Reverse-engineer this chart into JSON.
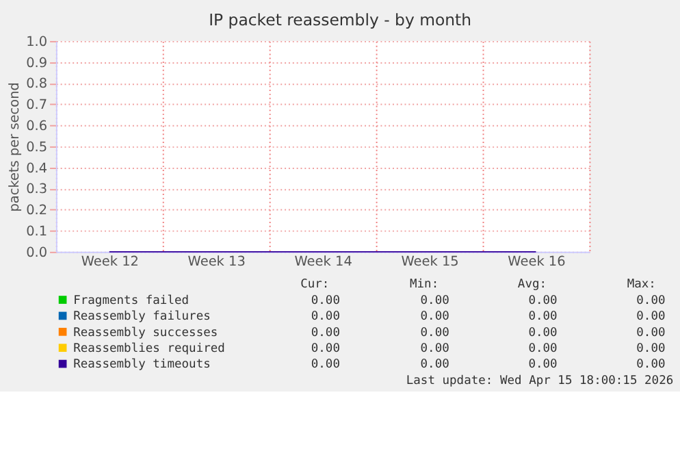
{
  "chart_data": {
    "type": "line",
    "title": "IP packet reassembly - by month",
    "ylabel": "packets per second",
    "categories": [
      "Week 12",
      "Week 13",
      "Week 14",
      "Week 15",
      "Week 16"
    ],
    "series": [
      {
        "name": "Fragments failed",
        "color": "#00cc00",
        "values": [
          null,
          null,
          null,
          null,
          null
        ]
      },
      {
        "name": "Reassembly failures",
        "color": "#0066b3",
        "values": [
          null,
          null,
          null,
          null,
          null
        ]
      },
      {
        "name": "Reassembly successes",
        "color": "#ff8000",
        "values": [
          null,
          null,
          null,
          null,
          null
        ]
      },
      {
        "name": "Reassemblies required",
        "color": "#ffcc00",
        "values": [
          null,
          null,
          null,
          null,
          null
        ]
      },
      {
        "name": "Reassembly timeouts",
        "color": "#330099",
        "values": [
          0,
          0,
          0,
          0,
          0
        ]
      }
    ],
    "ylim": [
      0,
      1.0
    ],
    "yticks": [
      {
        "value": 0,
        "label": "0.0"
      },
      {
        "value": 0.1,
        "label": "0.1"
      },
      {
        "value": 0.2,
        "label": "0.2"
      },
      {
        "value": 0.3,
        "label": "0.3"
      },
      {
        "value": 0.4,
        "label": "0.4"
      },
      {
        "value": 0.5,
        "label": "0.5"
      },
      {
        "value": 0.6,
        "label": "0.6"
      },
      {
        "value": 0.7,
        "label": "0.7"
      },
      {
        "value": 0.8,
        "label": "0.8"
      },
      {
        "value": 0.9,
        "label": "0.9"
      },
      {
        "value": 1.0,
        "label": "1.0"
      }
    ],
    "grid": true,
    "legend": "bottom",
    "line_style": "solid",
    "marker": "none",
    "annotations": [
      "Cur:",
      "Min:",
      "Avg:",
      "Max:",
      "0.00",
      "0.00",
      "0.00",
      "0.00",
      "0.00",
      "0.00",
      "0.00",
      "0.00",
      "0.00",
      "0.00",
      "0.00",
      "0.00",
      "0.00",
      "0.00",
      "0.00",
      "0.00",
      "0.00",
      "0.00",
      "0.00",
      "0.00",
      "Last update: Wed Apr 15 18:00:15 2026"
    ]
  }
}
